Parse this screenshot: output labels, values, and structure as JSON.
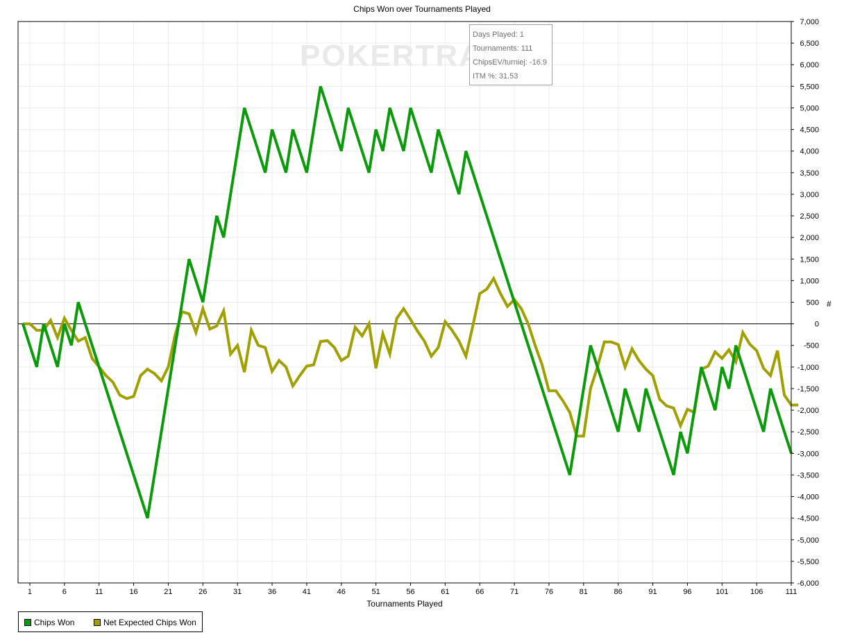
{
  "chart_data": {
    "type": "line",
    "title": "Chips Won over Tournaments Played",
    "xlabel": "Tournaments Played",
    "ylabel": "#",
    "xlim": [
      0,
      111
    ],
    "ylim": [
      -6000,
      7000
    ],
    "x_ticks": [
      1,
      6,
      11,
      16,
      21,
      26,
      31,
      36,
      41,
      46,
      51,
      56,
      61,
      66,
      71,
      76,
      81,
      86,
      91,
      96,
      101,
      106,
      111
    ],
    "y_ticks": [
      7000,
      6500,
      6000,
      5500,
      5000,
      4500,
      4000,
      3500,
      3000,
      2500,
      2000,
      1500,
      1000,
      500,
      0,
      -500,
      -1000,
      -1500,
      -2000,
      -2500,
      -3000,
      -3500,
      -4000,
      -4500,
      -5000,
      -5500,
      -6000
    ],
    "y_tick_labels": [
      "7,000",
      "6,500",
      "6,000",
      "5,500",
      "5,000",
      "4,500",
      "4,000",
      "3,500",
      "3,000",
      "2,500",
      "2,000",
      "1,500",
      "1,000",
      "500",
      "0",
      "-500",
      "-1,000",
      "-1,500",
      "-2,000",
      "-2,500",
      "-3,000",
      "-3,500",
      "-4,000",
      "-4,500",
      "-5,000",
      "-5,500",
      "-6,000"
    ],
    "grid": true,
    "legend_position": "bottom-left",
    "series": [
      {
        "name": "Chips Won",
        "color": "#0a9a0a",
        "points": [
          [
            0,
            0
          ],
          [
            2,
            -1000
          ],
          [
            3,
            0
          ],
          [
            5,
            -1000
          ],
          [
            6,
            0
          ],
          [
            7,
            -500
          ],
          [
            8,
            500
          ],
          [
            18,
            -4500
          ],
          [
            24,
            1500
          ],
          [
            26,
            500
          ],
          [
            28,
            2500
          ],
          [
            29,
            2000
          ],
          [
            32,
            5000
          ],
          [
            35,
            3500
          ],
          [
            36,
            4500
          ],
          [
            38,
            3500
          ],
          [
            39,
            4500
          ],
          [
            41,
            3500
          ],
          [
            43,
            5500
          ],
          [
            46,
            4000
          ],
          [
            47,
            5000
          ],
          [
            50,
            3500
          ],
          [
            51,
            4500
          ],
          [
            52,
            4000
          ],
          [
            53,
            5000
          ],
          [
            55,
            4000
          ],
          [
            56,
            5000
          ],
          [
            59,
            3500
          ],
          [
            60,
            4500
          ],
          [
            63,
            3000
          ],
          [
            64,
            4000
          ],
          [
            79,
            -3500
          ],
          [
            82,
            -500
          ],
          [
            86,
            -2500
          ],
          [
            87,
            -1500
          ],
          [
            89,
            -2500
          ],
          [
            90,
            -1500
          ],
          [
            94,
            -3500
          ],
          [
            95,
            -2500
          ],
          [
            96,
            -3000
          ],
          [
            98,
            -1000
          ],
          [
            100,
            -2000
          ],
          [
            101,
            -1000
          ],
          [
            102,
            -1500
          ],
          [
            103,
            -500
          ],
          [
            107,
            -2500
          ],
          [
            108,
            -1500
          ],
          [
            111,
            -3000
          ]
        ]
      },
      {
        "name": "Net Expected Chips Won",
        "color": "#a0a000",
        "points": [
          [
            0,
            0
          ],
          [
            1,
            0
          ],
          [
            2,
            -150
          ],
          [
            3,
            -150
          ],
          [
            4,
            80
          ],
          [
            5,
            -320
          ],
          [
            6,
            130
          ],
          [
            7,
            -150
          ],
          [
            8,
            -400
          ],
          [
            9,
            -320
          ],
          [
            10,
            -800
          ],
          [
            11,
            -1000
          ],
          [
            12,
            -1200
          ],
          [
            13,
            -1350
          ],
          [
            14,
            -1650
          ],
          [
            15,
            -1730
          ],
          [
            16,
            -1680
          ],
          [
            17,
            -1200
          ],
          [
            18,
            -1050
          ],
          [
            19,
            -1150
          ],
          [
            20,
            -1320
          ],
          [
            21,
            -1000
          ],
          [
            22,
            -250
          ],
          [
            23,
            280
          ],
          [
            24,
            230
          ],
          [
            25,
            -200
          ],
          [
            26,
            350
          ],
          [
            27,
            -120
          ],
          [
            28,
            -50
          ],
          [
            29,
            300
          ],
          [
            30,
            -700
          ],
          [
            31,
            -500
          ],
          [
            32,
            -1120
          ],
          [
            33,
            -150
          ],
          [
            34,
            -500
          ],
          [
            35,
            -550
          ],
          [
            36,
            -1100
          ],
          [
            37,
            -850
          ],
          [
            38,
            -1000
          ],
          [
            39,
            -1440
          ],
          [
            40,
            -1200
          ],
          [
            41,
            -980
          ],
          [
            42,
            -950
          ],
          [
            43,
            -410
          ],
          [
            44,
            -390
          ],
          [
            45,
            -550
          ],
          [
            46,
            -850
          ],
          [
            47,
            -750
          ],
          [
            48,
            -80
          ],
          [
            49,
            -280
          ],
          [
            50,
            0
          ],
          [
            51,
            -1030
          ],
          [
            52,
            -230
          ],
          [
            53,
            -700
          ],
          [
            54,
            120
          ],
          [
            55,
            350
          ],
          [
            56,
            100
          ],
          [
            57,
            -170
          ],
          [
            58,
            -400
          ],
          [
            59,
            -750
          ],
          [
            60,
            -550
          ],
          [
            61,
            50
          ],
          [
            62,
            -150
          ],
          [
            63,
            -400
          ],
          [
            64,
            -750
          ],
          [
            65,
            -50
          ],
          [
            66,
            700
          ],
          [
            67,
            800
          ],
          [
            68,
            1050
          ],
          [
            69,
            700
          ],
          [
            70,
            400
          ],
          [
            71,
            560
          ],
          [
            72,
            350
          ],
          [
            73,
            0
          ],
          [
            74,
            -500
          ],
          [
            75,
            -950
          ],
          [
            76,
            -1550
          ],
          [
            77,
            -1550
          ],
          [
            78,
            -1780
          ],
          [
            79,
            -2050
          ],
          [
            80,
            -2600
          ],
          [
            81,
            -2600
          ],
          [
            82,
            -1500
          ],
          [
            83,
            -1000
          ],
          [
            84,
            -420
          ],
          [
            85,
            -420
          ],
          [
            86,
            -480
          ],
          [
            87,
            -1000
          ],
          [
            88,
            -580
          ],
          [
            89,
            -850
          ],
          [
            90,
            -1050
          ],
          [
            91,
            -1200
          ],
          [
            92,
            -1750
          ],
          [
            93,
            -1900
          ],
          [
            94,
            -1950
          ],
          [
            95,
            -2360
          ],
          [
            96,
            -1980
          ],
          [
            97,
            -2050
          ],
          [
            98,
            -1050
          ],
          [
            99,
            -980
          ],
          [
            100,
            -650
          ],
          [
            101,
            -800
          ],
          [
            102,
            -600
          ],
          [
            103,
            -880
          ],
          [
            104,
            -200
          ],
          [
            105,
            -470
          ],
          [
            106,
            -620
          ],
          [
            107,
            -1030
          ],
          [
            108,
            -1200
          ],
          [
            109,
            -620
          ],
          [
            110,
            -1650
          ],
          [
            111,
            -1880
          ],
          [
            112,
            -1880
          ]
        ]
      }
    ],
    "tooltip": {
      "lines": [
        "Days Played: 1",
        "Tournaments: 111",
        "ChipsEV/turniej: -16.9",
        "ITM %: 31.53"
      ]
    },
    "watermark": "POKERTRAC"
  }
}
